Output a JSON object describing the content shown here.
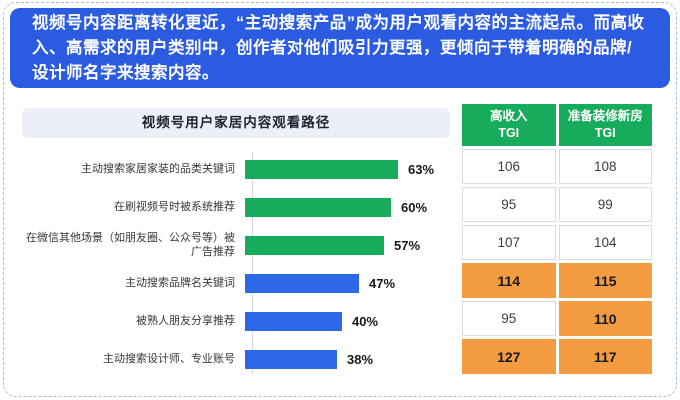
{
  "header": {
    "text": "视频号内容距离转化更近，“主动搜索产品”成为用户观看内容的主流起点。而高收入、高需求的用户类别中，创作者对他们吸引力更强，更倾向于带着明确的品牌/设计师名字来搜索内容。"
  },
  "chart_data": [
    {
      "type": "bar",
      "orientation": "horizontal",
      "title": "视频号用户家居内容观看路径",
      "value_unit": "%",
      "xlim": [
        0,
        70
      ],
      "grid": false,
      "bars": [
        {
          "label": "主动搜索家居家装的品类关键词",
          "value": 63,
          "display": "63%",
          "color": "green"
        },
        {
          "label": "在刷视频号时被系统推荐",
          "value": 60,
          "display": "60%",
          "color": "green"
        },
        {
          "label": "在微信其他场景（如朋友圈、公众号等）被广告推荐",
          "value": 57,
          "display": "57%",
          "color": "green"
        },
        {
          "label": "主动搜索品牌名关键词",
          "value": 47,
          "display": "47%",
          "color": "blue"
        },
        {
          "label": "被熟人朋友分享推荐",
          "value": 40,
          "display": "40%",
          "color": "blue"
        },
        {
          "label": "主动搜索设计师、专业账号",
          "value": 38,
          "display": "38%",
          "color": "blue"
        }
      ]
    },
    {
      "type": "table",
      "columns": [
        {
          "title": "高收入",
          "sub": "TGI"
        },
        {
          "title": "准备装修新房",
          "sub": "TGI"
        }
      ],
      "rows": [
        {
          "values": [
            106,
            108
          ],
          "highlight": [
            false,
            false
          ]
        },
        {
          "values": [
            95,
            99
          ],
          "highlight": [
            false,
            false
          ]
        },
        {
          "values": [
            107,
            104
          ],
          "highlight": [
            false,
            false
          ]
        },
        {
          "values": [
            114,
            115
          ],
          "highlight": [
            true,
            true
          ]
        },
        {
          "values": [
            95,
            110
          ],
          "highlight": [
            false,
            true
          ]
        },
        {
          "values": [
            127,
            117
          ],
          "highlight": [
            true,
            true
          ]
        }
      ]
    }
  ],
  "colors": {
    "green": "#17ab5c",
    "blue": "#2d68e8",
    "orange": "#f29b41",
    "header_blue": "#2b5be0",
    "title_banner": "#edeff8",
    "dashed_border": "#a3bee6"
  }
}
